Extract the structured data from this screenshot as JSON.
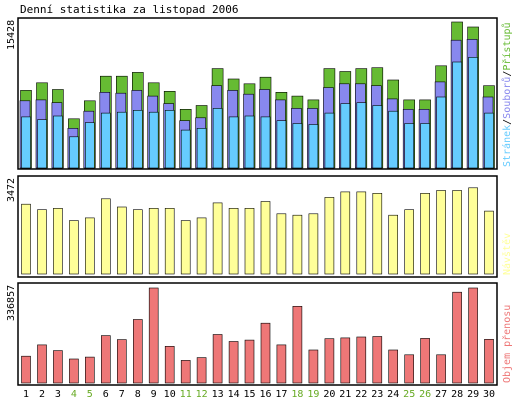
{
  "title": "Denní statistika za listopad 2006",
  "colors": {
    "pristupy": "#66bb33",
    "soubory": "#8888ee",
    "stranky": "#66ccff",
    "navstevy": "#ffff99",
    "prenosy": "#ee7777",
    "weekend_label": "#66aa22",
    "weekday_label": "#000000",
    "panel_frame": "#000000",
    "panel_bg": "#ffffff"
  },
  "chart_data": [
    {
      "type": "bar",
      "panel": "top",
      "y_max_label": "15428",
      "y_max": 15428,
      "legend": [
        {
          "name": "Stránek",
          "color": "#66ccff"
        },
        {
          "name": "/",
          "color": "#000000"
        },
        {
          "name": "Souborů",
          "color": "#8888ee"
        },
        {
          "name": "/",
          "color": "#000000"
        },
        {
          "name": "Přístupů",
          "color": "#66bb33"
        }
      ],
      "categories": [
        "1",
        "2",
        "3",
        "4",
        "5",
        "6",
        "7",
        "8",
        "9",
        "10",
        "11",
        "12",
        "13",
        "14",
        "15",
        "16",
        "17",
        "18",
        "19",
        "20",
        "21",
        "22",
        "23",
        "24",
        "25",
        "26",
        "27",
        "28",
        "29",
        "30"
      ],
      "weekend_days": [
        "4",
        "5",
        "11",
        "12",
        "18",
        "19",
        "25",
        "26"
      ],
      "series": [
        {
          "name": "Přístupů",
          "values": [
            8200,
            9000,
            8300,
            5200,
            7100,
            9700,
            9700,
            10100,
            9000,
            8100,
            6200,
            6600,
            10500,
            9400,
            8900,
            9600,
            8000,
            7600,
            7200,
            10500,
            10200,
            10500,
            10600,
            9300,
            7200,
            7200,
            10800,
            15428,
            14900,
            8700
          ]
        },
        {
          "name": "Souborů",
          "values": [
            7100,
            7200,
            6900,
            4200,
            6000,
            8000,
            7900,
            8200,
            7600,
            6800,
            5000,
            5300,
            8700,
            8200,
            7800,
            8300,
            7200,
            6300,
            6300,
            8500,
            8900,
            8900,
            8700,
            7300,
            6200,
            6200,
            9100,
            13500,
            13600,
            7500
          ]
        },
        {
          "name": "Stránek",
          "values": [
            5400,
            5100,
            5500,
            3300,
            4800,
            5800,
            5900,
            6100,
            5900,
            6100,
            4000,
            4200,
            6300,
            5400,
            5500,
            5400,
            5000,
            4700,
            4600,
            5800,
            6800,
            6900,
            6600,
            6000,
            4700,
            4700,
            7500,
            11200,
            11700,
            5800
          ]
        }
      ]
    },
    {
      "type": "bar",
      "panel": "middle",
      "y_max_label": "3472",
      "y_max": 3472,
      "legend": [
        {
          "name": "Návštěv",
          "color": "#ffff99"
        }
      ],
      "categories": [
        "1",
        "2",
        "3",
        "4",
        "5",
        "6",
        "7",
        "8",
        "9",
        "10",
        "11",
        "12",
        "13",
        "14",
        "15",
        "16",
        "17",
        "18",
        "19",
        "20",
        "21",
        "22",
        "23",
        "24",
        "25",
        "26",
        "27",
        "28",
        "29",
        "30"
      ],
      "series": [
        {
          "name": "Návštěv",
          "values": [
            2550,
            2350,
            2400,
            1950,
            2050,
            2750,
            2450,
            2350,
            2400,
            2400,
            1950,
            2050,
            2600,
            2400,
            2400,
            2650,
            2200,
            2150,
            2200,
            2800,
            3000,
            3000,
            2950,
            2150,
            2350,
            2950,
            3050,
            3050,
            3150,
            2300
          ]
        }
      ]
    },
    {
      "type": "bar",
      "panel": "bottom",
      "y_max_label": "336857",
      "y_max": 336857,
      "legend": [
        {
          "name": "Objem přenosu",
          "color": "#ee7777"
        }
      ],
      "categories": [
        "1",
        "2",
        "3",
        "4",
        "5",
        "6",
        "7",
        "8",
        "9",
        "10",
        "11",
        "12",
        "13",
        "14",
        "15",
        "16",
        "17",
        "18",
        "19",
        "20",
        "21",
        "22",
        "23",
        "24",
        "25",
        "26",
        "27",
        "28",
        "29",
        "30"
      ],
      "series": [
        {
          "name": "Objem přenosu",
          "values": [
            95000,
            135000,
            115000,
            85000,
            92000,
            168000,
            154000,
            225000,
            336857,
            130000,
            80000,
            90000,
            172000,
            147000,
            152000,
            212000,
            135000,
            272000,
            117000,
            157000,
            160000,
            163000,
            165000,
            117000,
            100000,
            158000,
            100000,
            322000,
            336857,
            155000
          ]
        }
      ]
    }
  ]
}
